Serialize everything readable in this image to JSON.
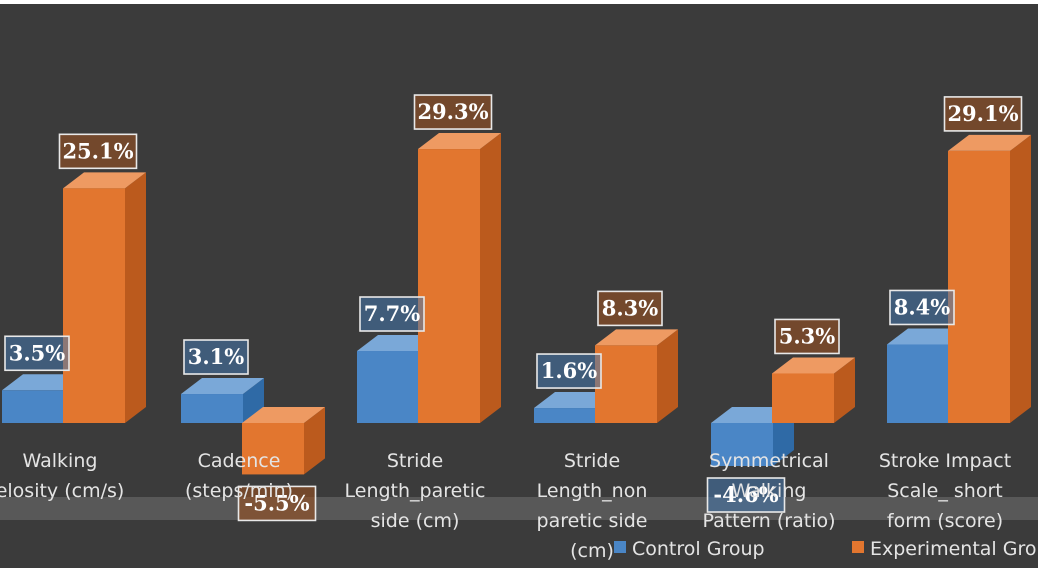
{
  "chart_data": {
    "type": "bar",
    "style": "3d-clustered-column",
    "categories": [
      [
        "Walking",
        "elosity (cm/s)"
      ],
      [
        "Cadence",
        "(steps/min)"
      ],
      [
        "Stride",
        "Length_paretic",
        "side (cm)"
      ],
      [
        "Stride",
        "Length_non",
        "paretic side",
        "(cm)"
      ],
      [
        "Symmetrical",
        "Walking",
        "Pattern  (ratio)"
      ],
      [
        "Stroke  Impact",
        "Scale_ short",
        "form (score)"
      ]
    ],
    "series": [
      {
        "name": "Control Group",
        "color": "#4a86c6",
        "values": [
          3.5,
          3.1,
          7.7,
          1.6,
          -4.6,
          8.4
        ],
        "labels": [
          "3.5%",
          "3.1%",
          "7.7%",
          "1.6%",
          "-4.6%",
          "8.4%"
        ]
      },
      {
        "name": "Experimental Gro",
        "color": "#e2762f",
        "values": [
          25.1,
          -5.5,
          29.3,
          8.3,
          5.3,
          29.1
        ],
        "labels": [
          "25.1%",
          "-5.5%",
          "29.3%",
          "8.3%",
          "5.3%",
          "29.1%"
        ]
      }
    ],
    "legend": "bottom",
    "grid": false
  },
  "colors": {
    "background": "#3b3b3b",
    "floor": "#585858",
    "control_front": "#4a86c6",
    "control_side": "#2f6aa6",
    "control_top": "#7aa8d8",
    "experimental_front": "#e2762f",
    "experimental_side": "#bb5a1d",
    "experimental_top": "#ee9a62"
  }
}
